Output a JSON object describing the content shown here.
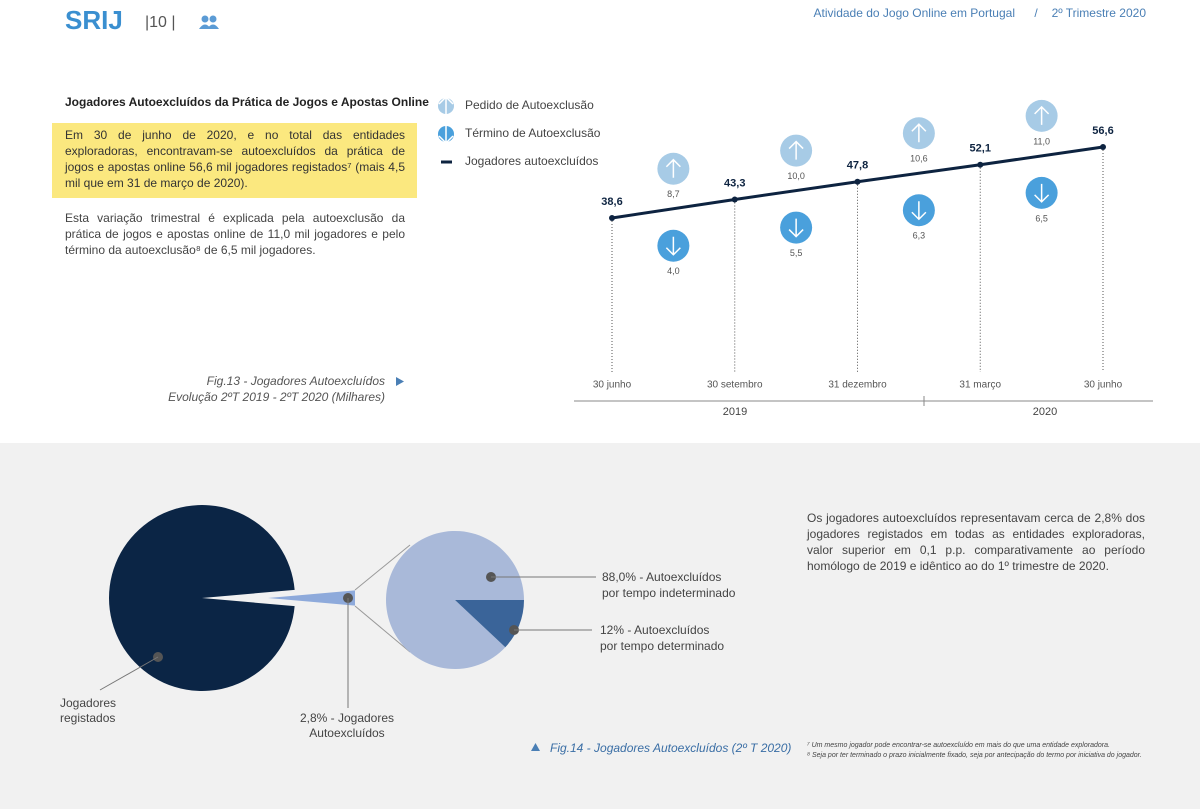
{
  "header": {
    "logo": "SRIJ",
    "page_number": "|10 |",
    "report": "Atividade do Jogo Online em Portugal",
    "separator": "/",
    "period": "2º Trimestre 2020"
  },
  "section_title": "Jogadores Autoexcluídos da Prática de Jogos e Apostas Online",
  "highlight": "Em 30 de junho de 2020, e no total das entidades exploradoras, encontravam-se autoexcluídos da prática de jogos e apostas online 56,6 mil jogadores registados⁷  (mais 4,5 mil que em 31 de março de 2020).",
  "paragraph": "Esta variação trimestral é explicada pela autoexclusão da prática de jogos e apostas online de 11,0 mil jogadores e pelo término da autoexclusão⁸  de 6,5 mil jogadores.",
  "fig13_caption": [
    "Fig.13 - Jogadores Autoexcluídos",
    "Evolução 2ºT 2019 - 2ºT 2020 (Milhares)"
  ],
  "right_paragraph": "Os jogadores autoexcluídos representavam cerca de 2,8% dos jogadores registados em todas as entidades exploradoras, valor superior em 0,1 p.p. comparativamente ao período homólogo de 2019 e idêntico ao do 1º trimestre de 2020.",
  "fig14_caption": "Fig.14 - Jogadores Autoexcluídos (2º T 2020)",
  "footnotes": [
    "⁷ Um mesmo jogador pode encontrar-se autoexcluído em mais do que uma entidade exploradora.",
    "⁸ Seja por ter terminado o prazo inicialmente fixado, seja por antecipação do termo por iniciativa do jogador."
  ],
  "chart_data": [
    {
      "type": "line",
      "categories": [
        "30 junho",
        "30 setembro",
        "31 dezembro",
        "31 março",
        "30  junho"
      ],
      "years": [
        "2019",
        "2020"
      ],
      "series": [
        {
          "name": "Jogadores autoexcluídos",
          "color": "#0d2340",
          "values": [
            38.6,
            43.3,
            47.8,
            52.1,
            56.6
          ],
          "value_labels": [
            "38,6",
            "43,3",
            "47,8",
            "52,1",
            "56,6"
          ]
        }
      ],
      "changes": [
        {
          "name": "Pedido de Autoexclusão",
          "color": "#a7cbe6",
          "direction": "up",
          "values": [
            8.7,
            10.0,
            10.6,
            11.0
          ],
          "value_labels": [
            "8,7",
            "10,0",
            "10,6",
            "11,0"
          ]
        },
        {
          "name": "Término de Autoexclusão",
          "color": "#4aa0dc",
          "direction": "down",
          "values": [
            4.0,
            5.5,
            6.3,
            6.5
          ],
          "value_labels": [
            "4,0",
            "5,5",
            "6,3",
            "6,5"
          ]
        }
      ]
    },
    {
      "type": "pie",
      "categories": [
        [
          "Jogadores",
          "registados"
        ],
        [
          "2,8% - Jogadores",
          "Autoexcluídos"
        ]
      ],
      "values": [
        97.2,
        2.8
      ],
      "colors": [
        "#0b2545",
        "#8eaadb"
      ]
    },
    {
      "type": "pie",
      "categories": [
        [
          "88,0% - Autoexcluídos",
          "por tempo indeterminado"
        ],
        [
          "12% - Autoexcluídos",
          "por tempo determinado"
        ]
      ],
      "values": [
        88.0,
        12
      ],
      "colors": [
        "#a9b9d9",
        "#3a6499"
      ]
    }
  ]
}
